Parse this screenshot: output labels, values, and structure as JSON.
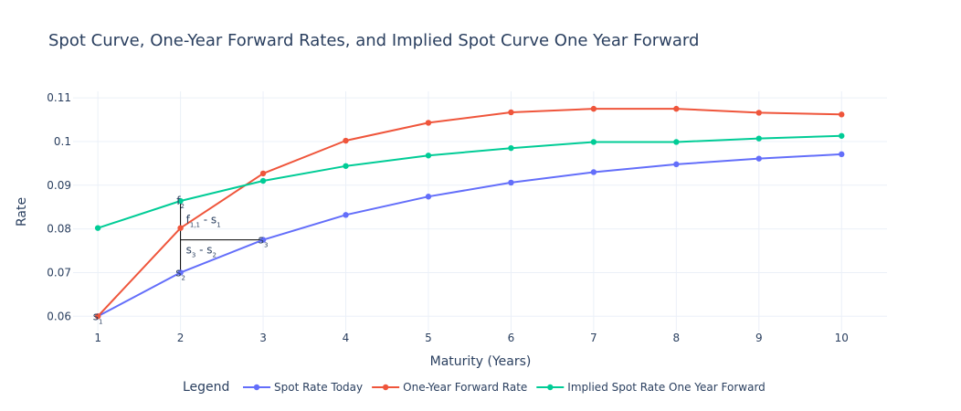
{
  "chart_data": {
    "type": "line",
    "title": "Spot Curve, One-Year Forward Rates, and Implied Spot Curve One Year Forward",
    "xlabel": "Maturity (Years)",
    "ylabel": "Rate",
    "x": [
      1,
      2,
      3,
      4,
      5,
      6,
      7,
      8,
      9,
      10
    ],
    "xlim": [
      0.7,
      10.55
    ],
    "ylim": [
      0.0565,
      0.1115
    ],
    "yticks": [
      0.06,
      0.07,
      0.08,
      0.09,
      0.1,
      0.11
    ],
    "yticklabels": [
      "0.06",
      "0.07",
      "0.08",
      "0.09",
      "0.1",
      "0.11"
    ],
    "grid": true,
    "legend": {
      "title": "Legend",
      "position": "bottom-center",
      "orientation": "horizontal"
    },
    "series": [
      {
        "name": "Spot Rate Today",
        "color": "#636efa",
        "values": [
          0.06,
          0.07,
          0.0775,
          0.0832,
          0.0874,
          0.0906,
          0.093,
          0.0948,
          0.0961,
          0.0971
        ]
      },
      {
        "name": "One-Year Forward Rate",
        "color": "#ef553b",
        "values": [
          0.06,
          0.0802,
          0.0927,
          0.1002,
          0.1043,
          0.1067,
          0.1075,
          0.1075,
          0.1066,
          0.1062
        ]
      },
      {
        "name": "Implied Spot Rate One Year Forward",
        "color": "#00cc96",
        "values": [
          0.0802,
          0.0864,
          0.091,
          0.0944,
          0.0968,
          0.0985,
          0.0999,
          0.0999,
          0.1007,
          0.1013
        ]
      }
    ],
    "annotations": [
      {
        "main": "s",
        "sub": "1",
        "x": 1,
        "y": 0.06
      },
      {
        "main": "f",
        "sub": "2",
        "x": 2,
        "y": 0.0864
      },
      {
        "main": "s",
        "sub": "2",
        "x": 2,
        "y": 0.07
      },
      {
        "main": "s",
        "sub": "3",
        "x": 3,
        "y": 0.0775
      },
      {
        "main": "f",
        "sub": "1,1",
        "tail": " - s",
        "tailsub": "1",
        "x": 2,
        "y": 0.0802
      },
      {
        "main": "s",
        "sub": "3",
        "tail": " - s",
        "tailsub": "2",
        "x": 2,
        "y": 0.0733
      }
    ],
    "shapes": [
      {
        "kind": "vline",
        "x": 2,
        "y0": 0.07,
        "y1": 0.0864
      },
      {
        "kind": "hline",
        "y": 0.0775,
        "x0": 2,
        "x1": 3
      }
    ]
  }
}
